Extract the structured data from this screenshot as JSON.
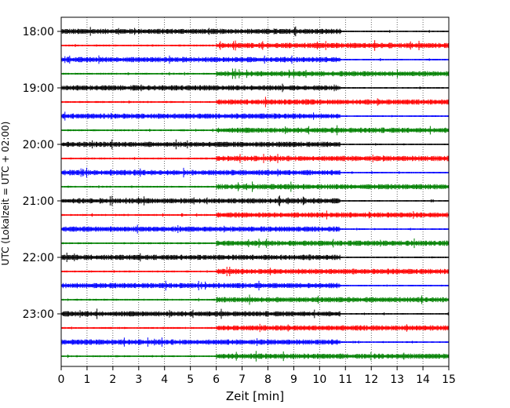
{
  "chart_data": {
    "type": "line",
    "chart_kind": "helicorder",
    "xlabel": "Zeit  [min]",
    "ylabel": "UTC (Lokalzeit = UTC + 02:00)",
    "xlim": [
      0,
      15
    ],
    "x_ticks": [
      "0",
      "1",
      "2",
      "3",
      "4",
      "5",
      "6",
      "7",
      "8",
      "9",
      "10",
      "11",
      "12",
      "13",
      "14",
      "15"
    ],
    "vertical_grid": "dotted",
    "trace_interval_min": 15,
    "hour_labels": [
      {
        "label": "18:00",
        "row": 0
      },
      {
        "label": "19:00",
        "row": 4
      },
      {
        "label": "20:00",
        "row": 8
      },
      {
        "label": "21:00",
        "row": 12
      },
      {
        "label": "22:00",
        "row": 16
      },
      {
        "label": "23:00",
        "row": 20
      }
    ],
    "colors": [
      "#000000",
      "#ff0000",
      "#0000ff",
      "#008000"
    ],
    "rows": 24
  }
}
